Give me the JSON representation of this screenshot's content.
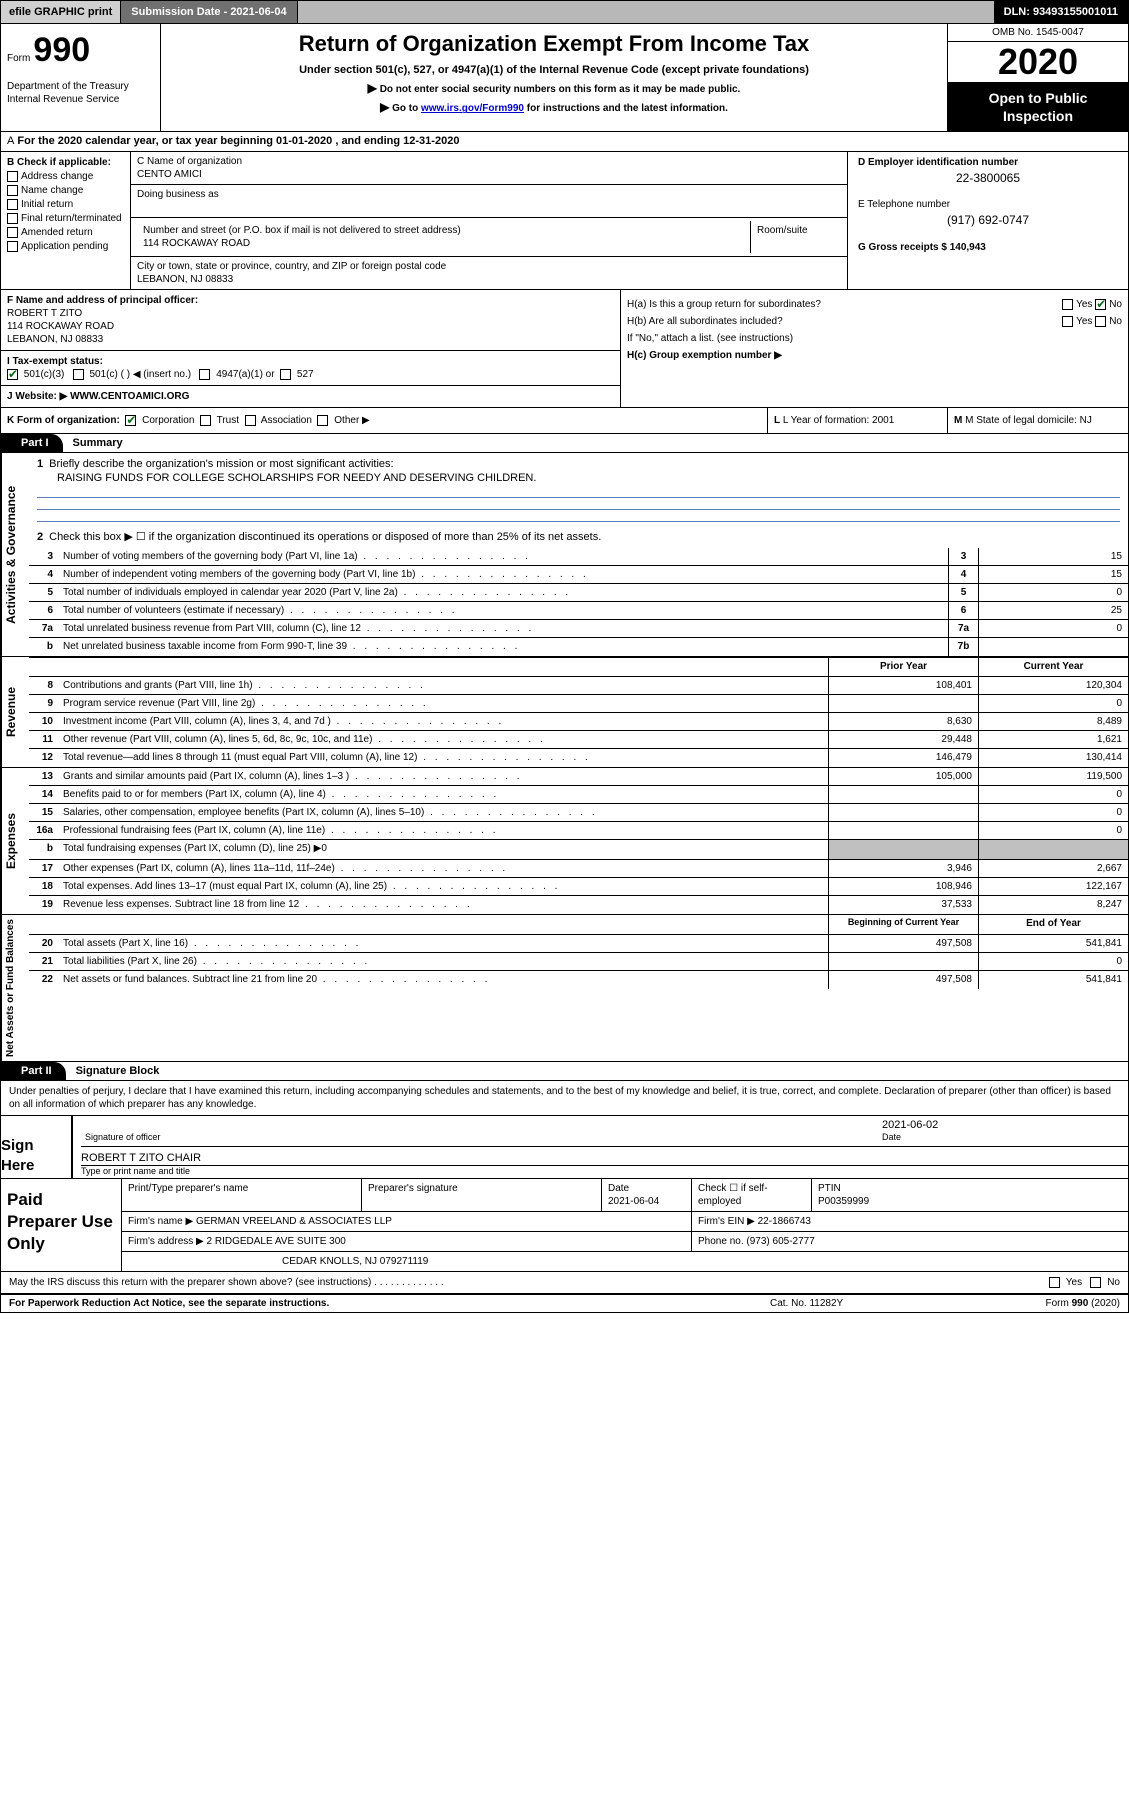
{
  "topbar": {
    "efile": "efile GRAPHIC print",
    "submission": "Submission Date - 2021-06-04",
    "dln": "DLN: 93493155001011"
  },
  "header": {
    "form_word": "Form",
    "form_num": "990",
    "dept": "Department of the Treasury",
    "irs": "Internal Revenue Service",
    "title": "Return of Organization Exempt From Income Tax",
    "subtitle": "Under section 501(c), 527, or 4947(a)(1) of the Internal Revenue Code (except private foundations)",
    "directive1": "Do not enter social security numbers on this form as it may be made public.",
    "directive2_pre": "Go to ",
    "directive2_link": "www.irs.gov/Form990",
    "directive2_post": " for instructions and the latest information.",
    "omb": "OMB No. 1545-0047",
    "year": "2020",
    "open_public_1": "Open to Public",
    "open_public_2": "Inspection"
  },
  "period": "For the 2020 calendar year, or tax year beginning 01-01-2020    , and ending 12-31-2020",
  "box_b": {
    "label": "B Check if applicable:",
    "opts": [
      "Address change",
      "Name change",
      "Initial return",
      "Final return/terminated",
      "Amended return",
      "Application pending"
    ]
  },
  "box_c": {
    "name_label": "C Name of organization",
    "name_val": "CENTO AMICI",
    "dba_label": "Doing business as",
    "addr_label": "Number and street (or P.O. box if mail is not delivered to street address)",
    "room_label": "Room/suite",
    "addr_val": "114 ROCKAWAY ROAD",
    "city_label": "City or town, state or province, country, and ZIP or foreign postal code",
    "city_val": "LEBANON, NJ  08833"
  },
  "box_d": {
    "ein_label": "D Employer identification number",
    "ein_val": "22-3800065",
    "tel_label": "E Telephone number",
    "tel_val": "(917) 692-0747",
    "gross_label": "G Gross receipts $ 140,943"
  },
  "box_f": {
    "label": "F  Name and address of principal officer:",
    "name": "ROBERT T ZITO",
    "addr1": "114 ROCKAWAY ROAD",
    "addr2": "LEBANON, NJ  08833"
  },
  "box_h": {
    "ha": "H(a)  Is this a group return for subordinates?",
    "hb": "H(b)  Are all subordinates included?",
    "hb_note": "If \"No,\" attach a list. (see instructions)",
    "hc": "H(c)  Group exemption number ▶",
    "yes": "Yes",
    "no": "No"
  },
  "tax_exempt": {
    "label_i": "I  Tax-exempt status:",
    "opt1": "501(c)(3)",
    "opt2": "501(c) (  ) ◀ (insert no.)",
    "opt3": "4947(a)(1) or",
    "opt4": "527"
  },
  "website": {
    "label": "J  Website: ▶",
    "val": "WWW.CENTOAMICI.ORG"
  },
  "box_k": {
    "label": "K Form of organization:",
    "corp": "Corporation",
    "trust": "Trust",
    "assoc": "Association",
    "other": "Other ▶",
    "l_label": "L Year of formation: 2001",
    "m_label": "M State of legal domicile: NJ"
  },
  "part1": {
    "tab": "Part I",
    "title": "Summary"
  },
  "gov": {
    "side": "Activities & Governance",
    "q1": "Briefly describe the organization's mission or most significant activities:",
    "q1_val": "RAISING FUNDS FOR COLLEGE SCHOLARSHIPS FOR NEEDY AND DESERVING CHILDREN.",
    "q2": "Check this box ▶ ☐  if the organization discontinued its operations or disposed of more than 25% of its net assets.",
    "rows": [
      {
        "n": "3",
        "d": "Number of voting members of the governing body (Part VI, line 1a)",
        "c": "3",
        "v": "15"
      },
      {
        "n": "4",
        "d": "Number of independent voting members of the governing body (Part VI, line 1b)",
        "c": "4",
        "v": "15"
      },
      {
        "n": "5",
        "d": "Total number of individuals employed in calendar year 2020 (Part V, line 2a)",
        "c": "5",
        "v": "0"
      },
      {
        "n": "6",
        "d": "Total number of volunteers (estimate if necessary)",
        "c": "6",
        "v": "25"
      },
      {
        "n": "7a",
        "d": "Total unrelated business revenue from Part VIII, column (C), line 12",
        "c": "7a",
        "v": "0"
      },
      {
        "n": "b",
        "d": "Net unrelated business taxable income from Form 990-T, line 39",
        "c": "7b",
        "v": ""
      }
    ]
  },
  "rev": {
    "side": "Revenue",
    "hdr_prior": "Prior Year",
    "hdr_curr": "Current Year",
    "rows": [
      {
        "n": "8",
        "d": "Contributions and grants (Part VIII, line 1h)",
        "p": "108,401",
        "c": "120,304"
      },
      {
        "n": "9",
        "d": "Program service revenue (Part VIII, line 2g)",
        "p": "",
        "c": "0"
      },
      {
        "n": "10",
        "d": "Investment income (Part VIII, column (A), lines 3, 4, and 7d )",
        "p": "8,630",
        "c": "8,489"
      },
      {
        "n": "11",
        "d": "Other revenue (Part VIII, column (A), lines 5, 6d, 8c, 9c, 10c, and 11e)",
        "p": "29,448",
        "c": "1,621"
      },
      {
        "n": "12",
        "d": "Total revenue—add lines 8 through 11 (must equal Part VIII, column (A), line 12)",
        "p": "146,479",
        "c": "130,414"
      }
    ]
  },
  "exp": {
    "side": "Expenses",
    "rows": [
      {
        "n": "13",
        "d": "Grants and similar amounts paid (Part IX, column (A), lines 1–3 )",
        "p": "105,000",
        "c": "119,500"
      },
      {
        "n": "14",
        "d": "Benefits paid to or for members (Part IX, column (A), line 4)",
        "p": "",
        "c": "0"
      },
      {
        "n": "15",
        "d": "Salaries, other compensation, employee benefits (Part IX, column (A), lines 5–10)",
        "p": "",
        "c": "0"
      },
      {
        "n": "16a",
        "d": "Professional fundraising fees (Part IX, column (A), line 11e)",
        "p": "",
        "c": "0"
      }
    ],
    "row_b": {
      "n": "b",
      "d": "Total fundraising expenses (Part IX, column (D), line 25) ▶0"
    },
    "rows2": [
      {
        "n": "17",
        "d": "Other expenses (Part IX, column (A), lines 11a–11d, 11f–24e)",
        "p": "3,946",
        "c": "2,667"
      },
      {
        "n": "18",
        "d": "Total expenses. Add lines 13–17 (must equal Part IX, column (A), line 25)",
        "p": "108,946",
        "c": "122,167"
      },
      {
        "n": "19",
        "d": "Revenue less expenses. Subtract line 18 from line 12",
        "p": "37,533",
        "c": "8,247"
      }
    ]
  },
  "net": {
    "side": "Net Assets or Fund Balances",
    "hdr_beg": "Beginning of Current Year",
    "hdr_end": "End of Year",
    "rows": [
      {
        "n": "20",
        "d": "Total assets (Part X, line 16)",
        "p": "497,508",
        "c": "541,841"
      },
      {
        "n": "21",
        "d": "Total liabilities (Part X, line 26)",
        "p": "",
        "c": "0"
      },
      {
        "n": "22",
        "d": "Net assets or fund balances. Subtract line 21 from line 20",
        "p": "497,508",
        "c": "541,841"
      }
    ]
  },
  "part2": {
    "tab": "Part II",
    "title": "Signature Block"
  },
  "penalties": "Under penalties of perjury, I declare that I have examined this return, including accompanying schedules and statements, and to the best of my knowledge and belief, it is true, correct, and complete. Declaration of preparer (other than officer) is based on all information of which preparer has any knowledge.",
  "sign": {
    "side": "Sign Here",
    "sig_label": "Signature of officer",
    "date_label": "Date",
    "date_val": "2021-06-02",
    "name_val": "ROBERT T ZITO  CHAIR",
    "name_label": "Type or print name and title"
  },
  "prep": {
    "side": "Paid Preparer Use Only",
    "h1": "Print/Type preparer's name",
    "h2": "Preparer's signature",
    "h3_l1": "Date",
    "h3_v": "2021-06-04",
    "h4": "Check ☐  if self-employed",
    "h5_l": "PTIN",
    "h5_v": "P00359999",
    "firm_name_l": "Firm's name     ▶",
    "firm_name_v": "GERMAN VREELAND & ASSOCIATES LLP",
    "firm_ein_l": "Firm's EIN ▶",
    "firm_ein_v": "22-1866743",
    "firm_addr_l": "Firm's address ▶",
    "firm_addr_v1": "2 RIDGEDALE AVE SUITE 300",
    "firm_addr_v2": "CEDAR KNOLLS, NJ  079271119",
    "phone_l": "Phone no.",
    "phone_v": "(973) 605-2777"
  },
  "discuss": "May the IRS discuss this return with the preparer shown above? (see instructions)",
  "footer": {
    "left": "For Paperwork Reduction Act Notice, see the separate instructions.",
    "mid": "Cat. No. 11282Y",
    "right": "Form 990 (2020)"
  }
}
